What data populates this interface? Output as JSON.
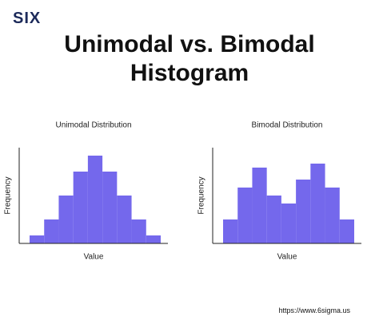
{
  "logo": "SIX",
  "title": "Unimodal vs. Bimodal\nHistogram",
  "url": "https://www.6sigma.us",
  "chart_data": [
    {
      "type": "bar",
      "title": "Unimodal Distribution",
      "x_label": "Value",
      "y_label": "Frequency",
      "values": [
        1,
        3,
        6,
        9,
        11,
        9,
        6,
        3,
        1
      ],
      "color": "#7468ec",
      "ylim": [
        0,
        12
      ]
    },
    {
      "type": "bar",
      "title": "Bimodal Distribution",
      "x_label": "Value",
      "y_label": "Frequency",
      "values": [
        3,
        7,
        9.5,
        6,
        5,
        8,
        10,
        7,
        3
      ],
      "color": "#7468ec",
      "ylim": [
        0,
        12
      ]
    }
  ]
}
